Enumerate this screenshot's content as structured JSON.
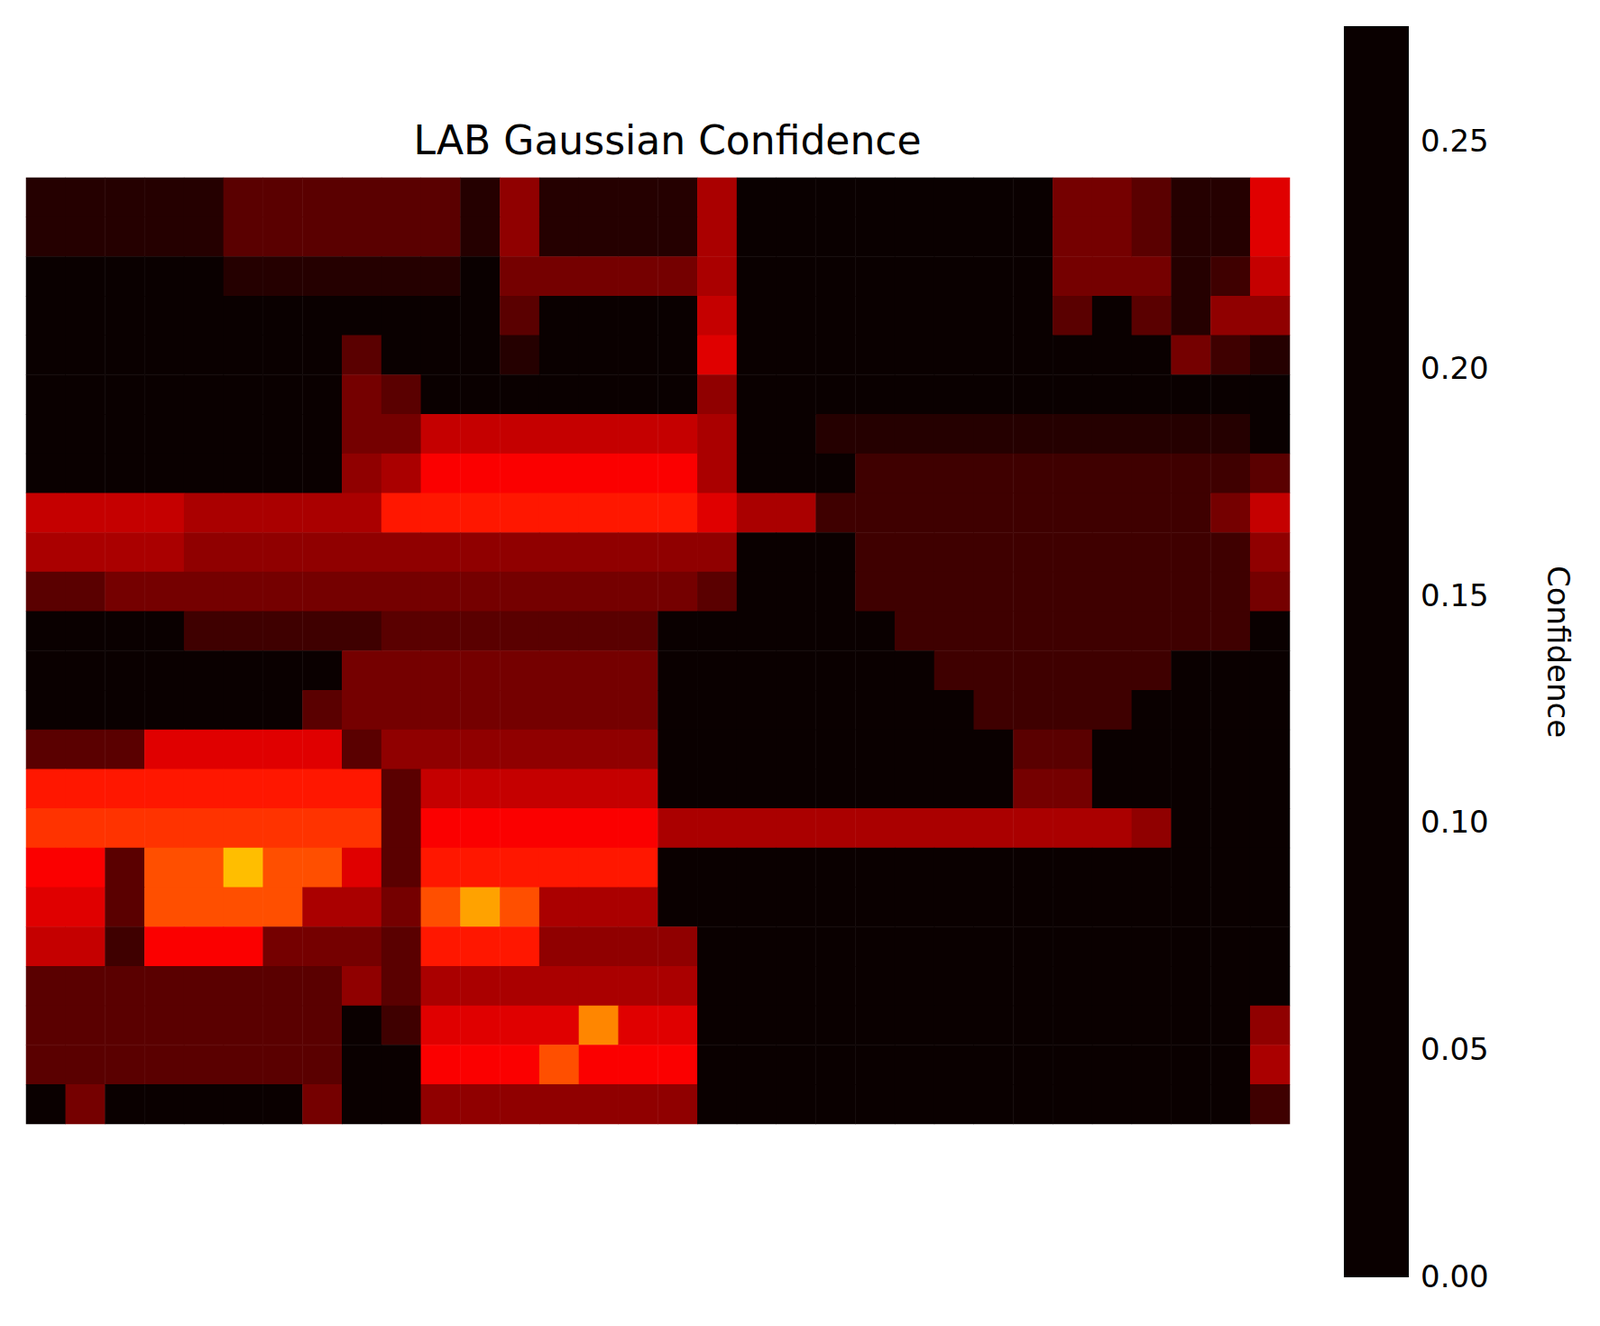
{
  "chart_data": {
    "type": "heatmap",
    "title": "LAB Gaussian Confidence",
    "color": "hot",
    "tick_labels": false,
    "cells": [
      [
        0.01,
        0.01,
        0.01,
        0.01,
        0.01,
        0.03,
        0.03,
        0.03,
        0.03,
        0.03,
        0.03,
        0.01,
        0.05,
        0.01,
        0.01,
        0.01,
        0.01,
        0.06,
        0,
        0,
        0,
        0,
        0,
        0,
        0,
        0,
        0.04,
        0.04,
        0.03,
        0.01,
        0.01,
        0.08
      ],
      [
        0.01,
        0.01,
        0.01,
        0.01,
        0.01,
        0.03,
        0.03,
        0.03,
        0.03,
        0.03,
        0.03,
        0.01,
        0.05,
        0.01,
        0.01,
        0.01,
        0.01,
        0.06,
        0,
        0,
        0,
        0,
        0,
        0,
        0,
        0,
        0.04,
        0.04,
        0.03,
        0.01,
        0.01,
        0.08
      ],
      [
        0,
        0,
        0,
        0,
        0,
        0.01,
        0.01,
        0.01,
        0.01,
        0.01,
        0.01,
        0,
        0.04,
        0.04,
        0.04,
        0.04,
        0.04,
        0.06,
        0,
        0,
        0,
        0,
        0,
        0,
        0,
        0,
        0.04,
        0.04,
        0.04,
        0.01,
        0.02,
        0.07
      ],
      [
        0,
        0,
        0,
        0,
        0,
        0,
        0,
        0,
        0,
        0,
        0,
        0,
        0.03,
        0,
        0,
        0,
        0,
        0.07,
        0,
        0,
        0,
        0,
        0,
        0,
        0,
        0,
        0.03,
        0,
        0.03,
        0.01,
        0.05,
        0.05
      ],
      [
        0,
        0,
        0,
        0,
        0,
        0,
        0,
        0,
        0.03,
        0,
        0,
        0,
        0.01,
        0,
        0,
        0,
        0,
        0.08,
        0,
        0,
        0,
        0,
        0,
        0,
        0,
        0,
        0,
        0,
        0,
        0.04,
        0.02,
        0.01
      ],
      [
        0,
        0,
        0,
        0,
        0,
        0,
        0,
        0,
        0.04,
        0.03,
        0,
        0,
        0,
        0,
        0,
        0,
        0,
        0.05,
        0,
        0,
        0,
        0,
        0,
        0,
        0,
        0,
        0,
        0,
        0,
        0,
        0,
        0
      ],
      [
        0,
        0,
        0,
        0,
        0,
        0,
        0,
        0,
        0.04,
        0.04,
        0.07,
        0.07,
        0.07,
        0.07,
        0.07,
        0.07,
        0.07,
        0.06,
        0,
        0,
        0.01,
        0.01,
        0.01,
        0.01,
        0.01,
        0.01,
        0.01,
        0.01,
        0.01,
        0.01,
        0.01,
        0
      ],
      [
        0,
        0,
        0,
        0,
        0,
        0,
        0,
        0,
        0.05,
        0.06,
        0.09,
        0.09,
        0.09,
        0.09,
        0.09,
        0.09,
        0.09,
        0.06,
        0,
        0,
        0,
        0.02,
        0.02,
        0.02,
        0.02,
        0.02,
        0.02,
        0.02,
        0.02,
        0.02,
        0.02,
        0.03
      ],
      [
        0.07,
        0.07,
        0.07,
        0.07,
        0.06,
        0.06,
        0.06,
        0.06,
        0.06,
        0.1,
        0.1,
        0.1,
        0.1,
        0.1,
        0.1,
        0.1,
        0.1,
        0.08,
        0.06,
        0.06,
        0.02,
        0.02,
        0.02,
        0.02,
        0.02,
        0.02,
        0.02,
        0.02,
        0.02,
        0.02,
        0.04,
        0.07
      ],
      [
        0.06,
        0.06,
        0.06,
        0.06,
        0.05,
        0.05,
        0.05,
        0.05,
        0.05,
        0.05,
        0.05,
        0.05,
        0.05,
        0.05,
        0.05,
        0.05,
        0.05,
        0.05,
        0,
        0,
        0,
        0.02,
        0.02,
        0.02,
        0.02,
        0.02,
        0.02,
        0.02,
        0.02,
        0.02,
        0.02,
        0.05
      ],
      [
        0.03,
        0.03,
        0.04,
        0.04,
        0.04,
        0.04,
        0.04,
        0.04,
        0.04,
        0.04,
        0.04,
        0.04,
        0.04,
        0.04,
        0.04,
        0.04,
        0.04,
        0.03,
        0,
        0,
        0,
        0.02,
        0.02,
        0.02,
        0.02,
        0.02,
        0.02,
        0.02,
        0.02,
        0.02,
        0.02,
        0.04
      ],
      [
        0,
        0,
        0,
        0,
        0.02,
        0.02,
        0.02,
        0.02,
        0.02,
        0.03,
        0.03,
        0.03,
        0.03,
        0.03,
        0.03,
        0.03,
        0,
        0,
        0,
        0,
        0,
        0,
        0.02,
        0.02,
        0.02,
        0.02,
        0.02,
        0.02,
        0.02,
        0.02,
        0.02,
        0
      ],
      [
        0,
        0,
        0,
        0,
        0,
        0,
        0,
        0,
        0.04,
        0.04,
        0.04,
        0.04,
        0.04,
        0.04,
        0.04,
        0.04,
        0,
        0,
        0,
        0,
        0,
        0,
        0,
        0.02,
        0.02,
        0.02,
        0.02,
        0.02,
        0.02,
        0,
        0,
        0
      ],
      [
        0,
        0,
        0,
        0,
        0,
        0,
        0,
        0.03,
        0.04,
        0.04,
        0.04,
        0.04,
        0.04,
        0.04,
        0.04,
        0.04,
        0,
        0,
        0,
        0,
        0,
        0,
        0,
        0,
        0.02,
        0.02,
        0.02,
        0.02,
        0,
        0,
        0,
        0
      ],
      [
        0.03,
        0.03,
        0.03,
        0.08,
        0.08,
        0.08,
        0.08,
        0.08,
        0.03,
        0.05,
        0.05,
        0.05,
        0.05,
        0.05,
        0.05,
        0.05,
        0,
        0,
        0,
        0,
        0,
        0,
        0,
        0,
        0,
        0.03,
        0.03,
        0,
        0,
        0,
        0,
        0
      ],
      [
        0.1,
        0.1,
        0.1,
        0.1,
        0.1,
        0.1,
        0.1,
        0.1,
        0.1,
        0.03,
        0.07,
        0.07,
        0.07,
        0.07,
        0.07,
        0.07,
        0,
        0,
        0,
        0,
        0,
        0,
        0,
        0,
        0,
        0.04,
        0.04,
        0,
        0,
        0,
        0,
        0
      ],
      [
        0.11,
        0.11,
        0.11,
        0.11,
        0.11,
        0.11,
        0.11,
        0.11,
        0.11,
        0.03,
        0.09,
        0.09,
        0.09,
        0.09,
        0.09,
        0.09,
        0.06,
        0.06,
        0.06,
        0.06,
        0.06,
        0.06,
        0.06,
        0.06,
        0.06,
        0.06,
        0.06,
        0.06,
        0.05,
        0,
        0,
        0
      ],
      [
        0.09,
        0.09,
        0.03,
        0.12,
        0.12,
        0.16,
        0.12,
        0.12,
        0.08,
        0.03,
        0.1,
        0.1,
        0.1,
        0.1,
        0.1,
        0.1,
        0,
        0,
        0,
        0,
        0,
        0,
        0,
        0,
        0,
        0,
        0,
        0,
        0,
        0,
        0,
        0
      ],
      [
        0.08,
        0.08,
        0.03,
        0.12,
        0.12,
        0.12,
        0.12,
        0.06,
        0.06,
        0.04,
        0.12,
        0.15,
        0.12,
        0.06,
        0.06,
        0.06,
        0,
        0,
        0,
        0,
        0,
        0,
        0,
        0,
        0,
        0,
        0,
        0,
        0,
        0,
        0,
        0
      ],
      [
        0.07,
        0.07,
        0.02,
        0.09,
        0.09,
        0.09,
        0.04,
        0.04,
        0.04,
        0.03,
        0.1,
        0.1,
        0.1,
        0.05,
        0.05,
        0.05,
        0.05,
        0,
        0,
        0,
        0,
        0,
        0,
        0,
        0,
        0,
        0,
        0,
        0,
        0,
        0,
        0
      ],
      [
        0.03,
        0.03,
        0.03,
        0.03,
        0.03,
        0.03,
        0.03,
        0.03,
        0.05,
        0.03,
        0.06,
        0.06,
        0.06,
        0.06,
        0.06,
        0.06,
        0.06,
        0,
        0,
        0,
        0,
        0,
        0,
        0,
        0,
        0,
        0,
        0,
        0,
        0,
        0,
        0
      ],
      [
        0.03,
        0.03,
        0.03,
        0.03,
        0.03,
        0.03,
        0.03,
        0.03,
        0,
        0.02,
        0.08,
        0.08,
        0.08,
        0.08,
        0.14,
        0.08,
        0.08,
        0,
        0,
        0,
        0,
        0,
        0,
        0,
        0,
        0,
        0,
        0,
        0,
        0,
        0,
        0.05
      ],
      [
        0.03,
        0.03,
        0.03,
        0.03,
        0.03,
        0.03,
        0.03,
        0.03,
        0,
        0,
        0.09,
        0.09,
        0.09,
        0.12,
        0.09,
        0.09,
        0.09,
        0,
        0,
        0,
        0,
        0,
        0,
        0,
        0,
        0,
        0,
        0,
        0,
        0,
        0,
        0.06
      ],
      [
        0,
        0.04,
        0,
        0,
        0,
        0,
        0,
        0.04,
        0,
        0,
        0.05,
        0.05,
        0.05,
        0.05,
        0.05,
        0.05,
        0.05,
        0,
        0,
        0,
        0,
        0,
        0,
        0,
        0,
        0,
        0,
        0,
        0,
        0,
        0,
        0.02
      ]
    ],
    "colorbar": {
      "label": "Confidence",
      "range": [
        0,
        0.275
      ],
      "ticks": [
        {
          "value": 0,
          "label": "0.00"
        },
        {
          "value": 0.05,
          "label": "0.05"
        },
        {
          "value": 0.1,
          "label": "0.10"
        },
        {
          "value": 0.15,
          "label": "0.15"
        },
        {
          "value": 0.2,
          "label": "0.20"
        },
        {
          "value": 0.25,
          "label": "0.25"
        }
      ]
    }
  }
}
